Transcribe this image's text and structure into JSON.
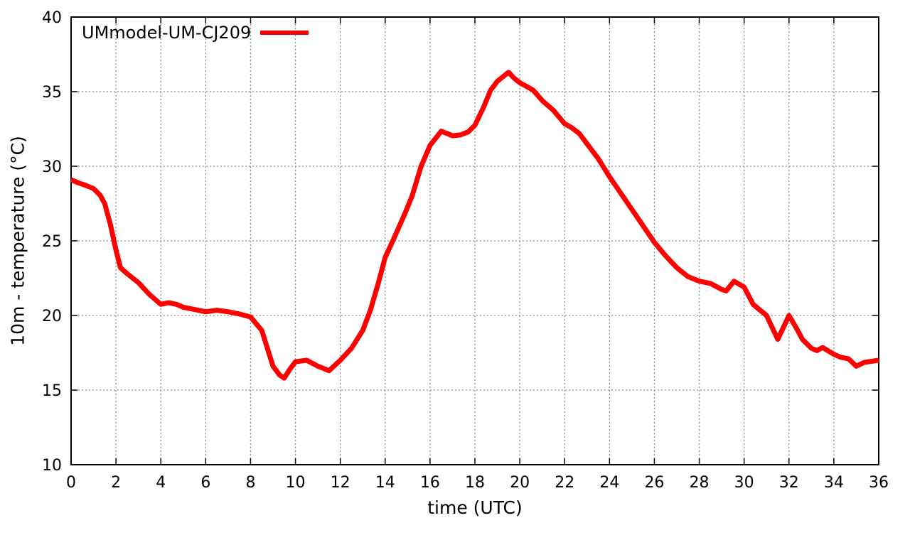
{
  "colors": {
    "background": "#ffffff",
    "axis": "#000000",
    "grid": "#8c8c8c",
    "text": "#000000",
    "series_red": "#ff0000"
  },
  "chart_data": {
    "type": "line",
    "title": "",
    "xlabel": "time (UTC)",
    "ylabel": "10m - temperature (°C)",
    "xlim": [
      0,
      36
    ],
    "ylim": [
      10,
      40
    ],
    "xticks": [
      0,
      2,
      4,
      6,
      8,
      10,
      12,
      14,
      16,
      18,
      20,
      22,
      24,
      26,
      28,
      30,
      32,
      34,
      36
    ],
    "yticks": [
      10,
      15,
      20,
      25,
      30,
      35,
      40
    ],
    "grid": "dotted-major",
    "legend_position": "top-left-inside",
    "series": [
      {
        "name": "UMmodel-UM-CJ209",
        "color": "#ff0000",
        "points": [
          [
            0,
            29.1
          ],
          [
            0.3,
            28.9
          ],
          [
            0.6,
            28.75
          ],
          [
            1.0,
            28.5
          ],
          [
            1.3,
            28.05
          ],
          [
            1.5,
            27.5
          ],
          [
            1.75,
            26.1
          ],
          [
            2.0,
            24.4
          ],
          [
            2.2,
            23.2
          ],
          [
            2.5,
            22.8
          ],
          [
            3.0,
            22.2
          ],
          [
            3.5,
            21.4
          ],
          [
            4.0,
            20.75
          ],
          [
            4.35,
            20.85
          ],
          [
            4.7,
            20.75
          ],
          [
            5.0,
            20.55
          ],
          [
            5.5,
            20.4
          ],
          [
            6.0,
            20.25
          ],
          [
            6.5,
            20.35
          ],
          [
            7.0,
            20.25
          ],
          [
            7.5,
            20.1
          ],
          [
            8.0,
            19.9
          ],
          [
            8.5,
            19.0
          ],
          [
            9.0,
            16.6
          ],
          [
            9.3,
            16.0
          ],
          [
            9.5,
            15.8
          ],
          [
            9.75,
            16.4
          ],
          [
            10.0,
            16.9
          ],
          [
            10.5,
            17.0
          ],
          [
            11.0,
            16.6
          ],
          [
            11.5,
            16.3
          ],
          [
            12.0,
            17.0
          ],
          [
            12.5,
            17.8
          ],
          [
            13.0,
            19.0
          ],
          [
            13.35,
            20.4
          ],
          [
            13.7,
            22.2
          ],
          [
            14.0,
            23.9
          ],
          [
            14.4,
            25.2
          ],
          [
            14.9,
            26.9
          ],
          [
            15.2,
            28.0
          ],
          [
            15.6,
            30.0
          ],
          [
            16.0,
            31.4
          ],
          [
            16.5,
            32.35
          ],
          [
            17.0,
            32.05
          ],
          [
            17.35,
            32.1
          ],
          [
            17.7,
            32.3
          ],
          [
            18.0,
            32.75
          ],
          [
            18.4,
            34.0
          ],
          [
            18.7,
            35.1
          ],
          [
            19.0,
            35.7
          ],
          [
            19.5,
            36.3
          ],
          [
            19.75,
            35.9
          ],
          [
            20.0,
            35.6
          ],
          [
            20.3,
            35.35
          ],
          [
            20.6,
            35.1
          ],
          [
            21.0,
            34.4
          ],
          [
            21.5,
            33.75
          ],
          [
            22.0,
            32.85
          ],
          [
            22.3,
            32.6
          ],
          [
            22.65,
            32.2
          ],
          [
            23.0,
            31.5
          ],
          [
            23.5,
            30.5
          ],
          [
            24.0,
            29.3
          ],
          [
            24.5,
            28.2
          ],
          [
            25.0,
            27.1
          ],
          [
            25.5,
            26.0
          ],
          [
            26.0,
            24.9
          ],
          [
            26.5,
            24.0
          ],
          [
            27.0,
            23.2
          ],
          [
            27.5,
            22.6
          ],
          [
            28.0,
            22.3
          ],
          [
            28.5,
            22.15
          ],
          [
            29.0,
            21.75
          ],
          [
            29.2,
            21.65
          ],
          [
            29.55,
            22.3
          ],
          [
            30.0,
            21.9
          ],
          [
            30.4,
            20.75
          ],
          [
            31.0,
            20.0
          ],
          [
            31.5,
            18.4
          ],
          [
            32.0,
            20.0
          ],
          [
            32.35,
            19.1
          ],
          [
            32.6,
            18.4
          ],
          [
            33.0,
            17.8
          ],
          [
            33.25,
            17.65
          ],
          [
            33.5,
            17.85
          ],
          [
            34.0,
            17.4
          ],
          [
            34.3,
            17.2
          ],
          [
            34.65,
            17.1
          ],
          [
            35.0,
            16.6
          ],
          [
            35.35,
            16.85
          ],
          [
            36.0,
            17.0
          ]
        ]
      }
    ]
  }
}
